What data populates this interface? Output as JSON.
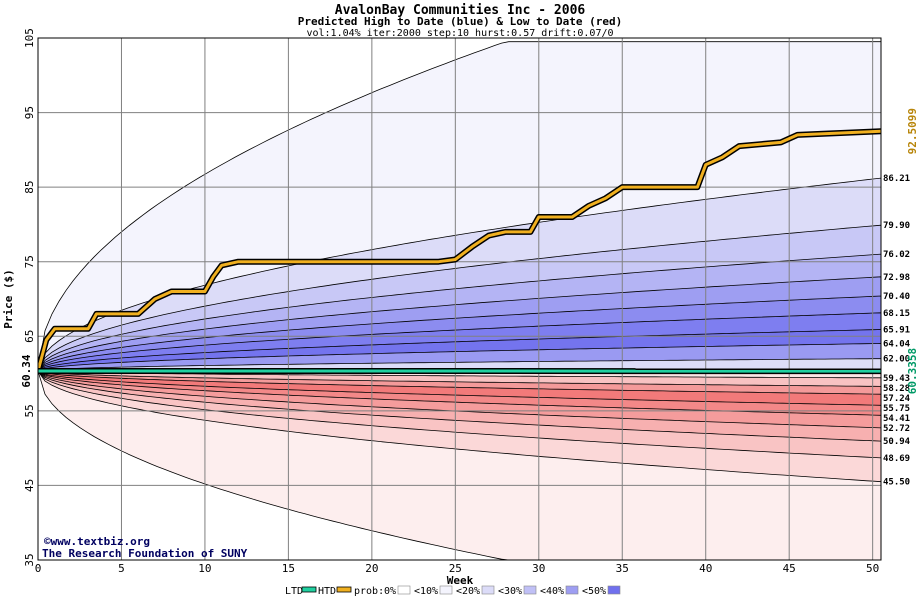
{
  "chart_data": {
    "type": "area",
    "title": "AvalonBay Communities Inc - 2006",
    "subtitle": "Predicted High to Date (blue) &  Low to Date (red)",
    "params": "vol:1.04% iter:2000 step:10 hurst:0.57 drift:0.07/0",
    "xlabel": "Week",
    "ylabel": "Price ($)",
    "xlim": [
      0,
      50.5
    ],
    "ylim": [
      35,
      105
    ],
    "x_ticks": [
      0,
      5,
      10,
      15,
      20,
      25,
      30,
      35,
      40,
      45,
      50
    ],
    "y_ticks": [
      35,
      45,
      55,
      65,
      75,
      85,
      95,
      105
    ],
    "grid": true,
    "start_price": 60.34,
    "start_label": "60.34",
    "right_value_labels": [
      "86.21",
      "79.90",
      "76.02",
      "72.98",
      "70.40",
      "68.15",
      "65.91",
      "64.04",
      "62.00",
      "59.43",
      "58.28",
      "57.24",
      "55.75",
      "54.41",
      "52.72",
      "50.94",
      "48.69",
      "45.50"
    ],
    "rotated_labels": [
      {
        "text": "92.5099",
        "value": 92.5099,
        "color": "#b8860b"
      },
      {
        "text": "60.3358",
        "value": 60.3358,
        "color": "#009966"
      }
    ],
    "high_bands": [
      {
        "end": 104.5,
        "color": "#f4f4fd"
      },
      {
        "end": 86.21,
        "color": "#dcdcf8"
      },
      {
        "end": 79.9,
        "color": "#c8c8f6"
      },
      {
        "end": 76.02,
        "color": "#b4b4f4"
      },
      {
        "end": 72.98,
        "color": "#9e9ef2"
      },
      {
        "end": 70.4,
        "color": "#8c8cf0"
      },
      {
        "end": 68.15,
        "color": "#7e7ef0"
      },
      {
        "end": 65.91,
        "color": "#7474ee"
      },
      {
        "end": 64.04,
        "color": "#9a9af2"
      },
      {
        "end": 62.0,
        "color": "#dcdcf8"
      }
    ],
    "low_bands": [
      {
        "end": 35.0,
        "color": "#fdeeee"
      },
      {
        "end": 45.5,
        "color": "#fbd8d8"
      },
      {
        "end": 48.69,
        "color": "#f9c4c4"
      },
      {
        "end": 50.94,
        "color": "#f7b0b0"
      },
      {
        "end": 52.72,
        "color": "#f59c9c"
      },
      {
        "end": 54.41,
        "color": "#f38888"
      },
      {
        "end": 55.75,
        "color": "#f27a7a"
      },
      {
        "end": 57.24,
        "color": "#f49a9a"
      },
      {
        "end": 58.28,
        "color": "#f8c2c2"
      },
      {
        "end": 59.43,
        "color": "#fce6e6"
      }
    ],
    "band_envelope": {
      "curve": "sqrt",
      "upper_end": 104.5,
      "upper_end_week": 28,
      "lower_end": 35.0,
      "lower_end_week": 28
    },
    "series": [
      {
        "name": "HTD",
        "color": "#f0b020",
        "points": [
          [
            0,
            60.34
          ],
          [
            0.5,
            64.5
          ],
          [
            1,
            66
          ],
          [
            3,
            66
          ],
          [
            3.5,
            68
          ],
          [
            6,
            68
          ],
          [
            7,
            70
          ],
          [
            8,
            71
          ],
          [
            10,
            71
          ],
          [
            10.5,
            73
          ],
          [
            11,
            74.5
          ],
          [
            12,
            75
          ],
          [
            24,
            75
          ],
          [
            25,
            75.3
          ],
          [
            26,
            77
          ],
          [
            27,
            78.5
          ],
          [
            28,
            79
          ],
          [
            29.5,
            79
          ],
          [
            30,
            81
          ],
          [
            32,
            81
          ],
          [
            33,
            82.5
          ],
          [
            34,
            83.5
          ],
          [
            35,
            85
          ],
          [
            39.5,
            85
          ],
          [
            40,
            88
          ],
          [
            41,
            89
          ],
          [
            42,
            90.5
          ],
          [
            44.5,
            91
          ],
          [
            45.5,
            92
          ],
          [
            50.5,
            92.5
          ]
        ]
      },
      {
        "name": "LTD",
        "color": "#20d0a0",
        "points": [
          [
            0,
            60.34
          ],
          [
            50.5,
            60.3358
          ]
        ]
      }
    ]
  },
  "credit": {
    "copyright": "©www.textbiz.org",
    "org": "The Research Foundation of SUNY"
  },
  "legend": {
    "ltd": "LTD",
    "htd": "HTD",
    "prob": "prob:",
    "items": [
      {
        "label": "0%",
        "color": "#ffffff"
      },
      {
        "label": "<10%",
        "color": "#f4f4fd"
      },
      {
        "label": "<20%",
        "color": "#dcdcf8"
      },
      {
        "label": "<30%",
        "color": "#c0c0f6"
      },
      {
        "label": "<40%",
        "color": "#9e9ef2"
      },
      {
        "label": "<50%",
        "color": "#7070ee"
      }
    ]
  }
}
